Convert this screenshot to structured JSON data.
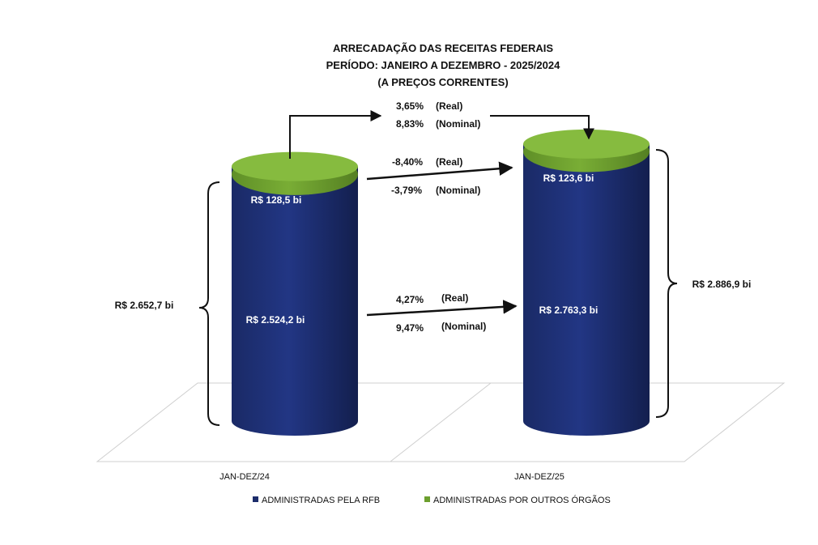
{
  "chart_data": {
    "type": "bar",
    "title": [
      "ARRECADAÇÃO DAS RECEITAS FEDERAIS",
      "PERÍODO: JANEIRO A DEZEMBRO - 2025/2024",
      "(A PREÇOS CORRENTES)"
    ],
    "categories": [
      "JAN-DEZ/24",
      "JAN-DEZ/25"
    ],
    "stacked": true,
    "unit": "R$ bi",
    "ylim": [
      0,
      3000
    ],
    "series": [
      {
        "name": "ADMINISTRADAS PELA RFB",
        "color": "#1c2d6b",
        "values": [
          2524.2,
          2763.3
        ],
        "labels": [
          "R$ 2.524,2  bi",
          "R$ 2.763,3  bi"
        ]
      },
      {
        "name": "ADMINISTRADAS POR OUTROS ÓRGÃOS",
        "color": "#6c9f2e",
        "values": [
          128.5,
          123.6
        ],
        "labels": [
          "R$ 128,5  bi",
          "R$ 123,6  bi"
        ]
      }
    ],
    "totals": [
      2652.7,
      2886.9
    ],
    "total_labels": [
      "R$ 2.652,7  bi",
      "R$ 2.886,9  bi"
    ],
    "legend": "bottom",
    "annotations": {
      "total": {
        "real": "3,65%",
        "nominal": "8,83%"
      },
      "outros": {
        "real": "-8,40%",
        "nominal": "-3,79%"
      },
      "rfb": {
        "real": "4,27%",
        "nominal": "9,47%"
      },
      "real_label": "(Real)",
      "nominal_label": "(Nominal)"
    }
  }
}
